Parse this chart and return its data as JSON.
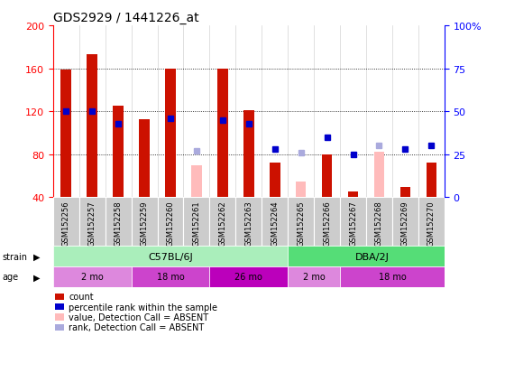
{
  "title": "GDS2929 / 1441226_at",
  "samples": [
    "GSM152256",
    "GSM152257",
    "GSM152258",
    "GSM152259",
    "GSM152260",
    "GSM152261",
    "GSM152262",
    "GSM152263",
    "GSM152264",
    "GSM152265",
    "GSM152266",
    "GSM152267",
    "GSM152268",
    "GSM152269",
    "GSM152270"
  ],
  "red_values": [
    159,
    173,
    125,
    113,
    160,
    null,
    160,
    121,
    72,
    null,
    80,
    45,
    null,
    50,
    72
  ],
  "pink_values": [
    null,
    null,
    null,
    null,
    null,
    70,
    null,
    null,
    null,
    55,
    null,
    null,
    82,
    null,
    null
  ],
  "blue_values": [
    50,
    50,
    43,
    null,
    46,
    null,
    45,
    43,
    28,
    null,
    35,
    25,
    null,
    28,
    30
  ],
  "lightblue_values": [
    null,
    null,
    null,
    null,
    null,
    27,
    null,
    null,
    null,
    26,
    null,
    null,
    30,
    null,
    null
  ],
  "ylim_left": [
    40,
    200
  ],
  "ylim_right": [
    0,
    100
  ],
  "yticks_left": [
    40,
    80,
    120,
    160,
    200
  ],
  "ytick_labels_left": [
    "40",
    "80",
    "120",
    "160",
    "200"
  ],
  "yticks_right": [
    0,
    25,
    50,
    75,
    100
  ],
  "ytick_labels_right": [
    "0",
    "25",
    "50",
    "75",
    "100%"
  ],
  "bar_width": 0.4,
  "red_color": "#cc1100",
  "pink_color": "#ffbbbb",
  "blue_color": "#0000cc",
  "lightblue_color": "#aaaadd",
  "strain_color_c57": "#aaeebb",
  "strain_color_dba": "#55dd77",
  "age_color_2mo": "#dd88dd",
  "age_color_18mo": "#cc44cc",
  "age_color_26mo": "#bb00bb",
  "age_groups": [
    {
      "label": "2 mo",
      "start": 0,
      "end": 3
    },
    {
      "label": "18 mo",
      "start": 3,
      "end": 6
    },
    {
      "label": "26 mo",
      "start": 6,
      "end": 9
    },
    {
      "label": "2 mo",
      "start": 9,
      "end": 11
    },
    {
      "label": "18 mo",
      "start": 11,
      "end": 15
    }
  ],
  "age_color_list": [
    "#dd88dd",
    "#cc44cc",
    "#bb00bb",
    "#dd88dd",
    "#cc44cc"
  ],
  "marker_size": 5,
  "grid_dotted_color": "#000000",
  "figwidth": 5.6,
  "figheight": 4.14,
  "dpi": 100
}
